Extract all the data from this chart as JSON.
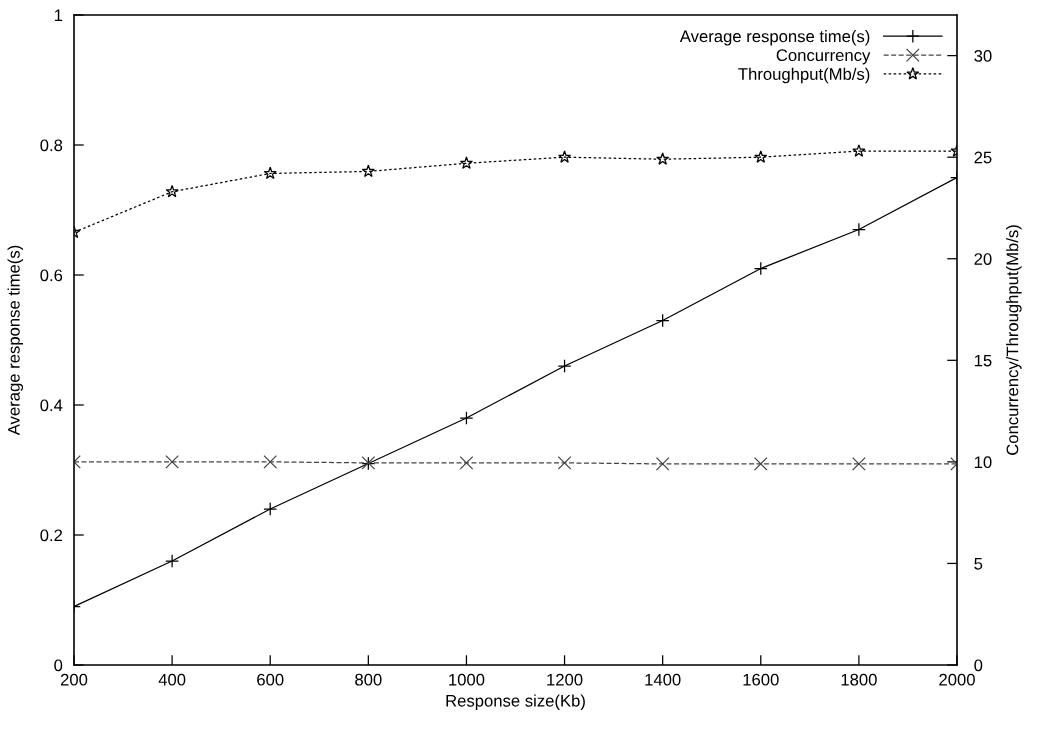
{
  "chart_data": {
    "type": "line",
    "xlabel": "Response size(Kb)",
    "ylabel": "Average response time(s)",
    "y2label": "Concurrency/Throughput(Mb/s)",
    "x": [
      200,
      400,
      600,
      800,
      1000,
      1200,
      1400,
      1600,
      1800,
      2000
    ],
    "series": [
      {
        "name": "Average response time(s)",
        "color": "#000000",
        "marker": "cross",
        "line_style": "solid",
        "values": [
          0.09,
          0.16,
          0.24,
          0.31,
          0.38,
          0.46,
          0.53,
          0.61,
          0.67,
          0.75
        ]
      },
      {
        "name": "Concurrency",
        "color": "#444444",
        "marker": "cross",
        "line_style": "dashed",
        "axis": "y2",
        "values": [
          10.0,
          10.0,
          10.0,
          9.95,
          9.95,
          9.95,
          9.9,
          9.9,
          9.9,
          9.9
        ]
      },
      {
        "name": "Throughput(Mb/s)",
        "color": "#000000",
        "marker": "star",
        "line_style": "dotted",
        "axis": "y2",
        "values": [
          21.3,
          23.3,
          24.2,
          24.3,
          24.7,
          25.0,
          24.9,
          25.0,
          25.3,
          25.3
        ]
      }
    ],
    "xlim": [
      200,
      2000
    ],
    "xticks": [
      200,
      400,
      600,
      800,
      1000,
      1200,
      1400,
      1600,
      1800,
      2000
    ],
    "ylim": [
      0,
      1
    ],
    "yticks": [
      0,
      0.2,
      0.4,
      0.6,
      0.8,
      1
    ],
    "y2lim": [
      0,
      32
    ],
    "y2ticks": [
      0,
      5,
      10,
      15,
      20,
      25,
      30
    ],
    "grid": false,
    "legend": "top right"
  }
}
